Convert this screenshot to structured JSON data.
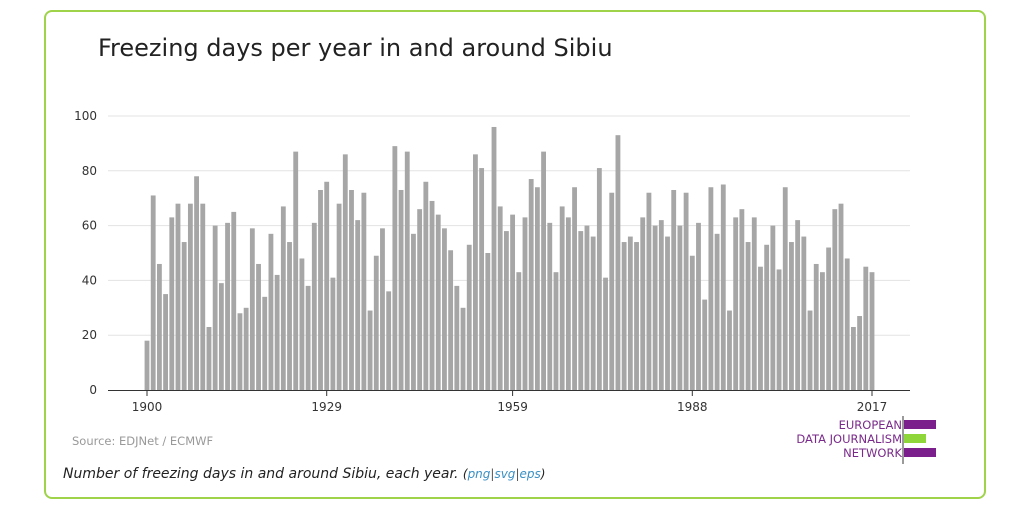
{
  "title": "Freezing days per year in and around Sibiu",
  "source": "Source: EDJNet / ECMWF",
  "caption": {
    "text": "Number of freezing days in and around Sibiu, each year.",
    "open": "(",
    "close": ")",
    "sep": "|",
    "links": [
      "png",
      "svg",
      "eps"
    ]
  },
  "logo": {
    "lines": [
      "EUROPEAN",
      "DATA JOURNALISM",
      "NETWORK"
    ],
    "colors": [
      "#7a1f8c",
      "#8fd63a",
      "#7a1f8c"
    ]
  },
  "colors": {
    "frame": "#9fd34a",
    "bar": "#a6a6a6",
    "grid": "#e3e3e3",
    "link": "#3a8fc4"
  },
  "chart_data": {
    "type": "bar",
    "title": "Freezing days per year in and around Sibiu",
    "xlabel": "",
    "ylabel": "",
    "ylim": [
      0,
      100
    ],
    "yticks": [
      0,
      20,
      40,
      60,
      80,
      100
    ],
    "xticks": [
      1900,
      1929,
      1959,
      1988,
      2017
    ],
    "grid": true,
    "x_start": 1900,
    "x_end": 2017,
    "values": [
      18,
      71,
      46,
      35,
      63,
      68,
      54,
      68,
      78,
      68,
      23,
      60,
      39,
      61,
      65,
      28,
      30,
      59,
      46,
      34,
      57,
      42,
      67,
      54,
      87,
      48,
      38,
      61,
      73,
      76,
      41,
      68,
      86,
      73,
      62,
      72,
      29,
      49,
      59,
      36,
      89,
      73,
      87,
      57,
      66,
      76,
      69,
      64,
      59,
      51,
      38,
      30,
      53,
      86,
      81,
      50,
      96,
      67,
      58,
      64,
      43,
      63,
      77,
      74,
      87,
      61,
      43,
      67,
      63,
      74,
      58,
      60,
      56,
      81,
      41,
      72,
      93,
      54,
      56,
      54,
      63,
      72,
      60,
      62,
      56,
      73,
      60,
      72,
      49,
      61,
      33,
      74,
      57,
      75,
      29,
      63,
      66,
      54,
      63,
      45,
      53,
      60,
      44,
      74,
      54,
      62,
      56,
      29,
      46,
      43,
      52,
      66,
      68,
      48,
      23,
      27,
      45,
      43
    ]
  }
}
